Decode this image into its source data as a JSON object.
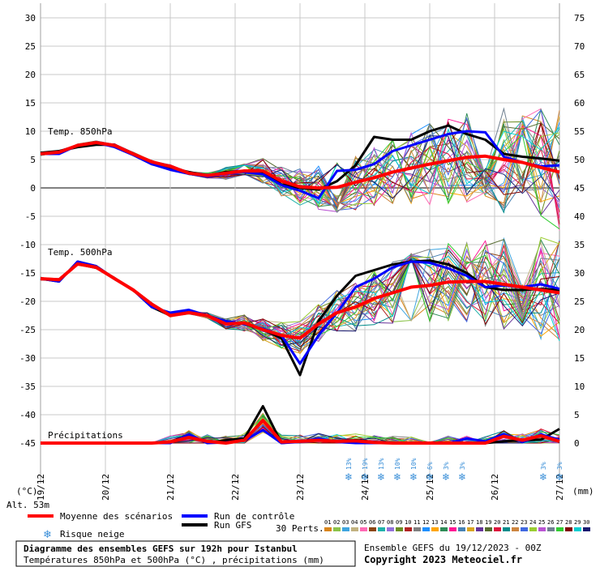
{
  "chart_data": {
    "type": "line",
    "title": "Diagramme des ensembles GEFS sur 192h pour Istanbul",
    "subtitle": "Températures 850hPa et 500hPa (°C) , précipitations (mm)",
    "run_label": "Ensemble GEFS du 19/12/2023 - 00Z",
    "copyright": "Copyright 2023 Meteociel.fr",
    "altitude_label": "Alt. 53m",
    "left_unit": "(°C)",
    "right_unit": "(mm)",
    "y_left": {
      "min": -45,
      "max": 30,
      "ticks": [
        30,
        25,
        20,
        15,
        10,
        5,
        0,
        -5,
        -10,
        -15,
        -20,
        -25,
        -30,
        -35,
        -40,
        -45
      ]
    },
    "y_right": {
      "min": 0,
      "max": 75,
      "ticks": [
        75,
        70,
        65,
        60,
        55,
        50,
        45,
        40,
        35,
        30,
        25,
        20,
        15,
        10,
        5,
        0
      ]
    },
    "x_labels": [
      "19/12",
      "20/12",
      "21/12",
      "22/12",
      "23/12",
      "24/12",
      "25/12",
      "26/12",
      "27/12"
    ],
    "panel_labels": {
      "t850": "Temp. 850hPa",
      "t500": "Temp. 500hPa",
      "precip": "Précipitations"
    },
    "series": [
      {
        "name": "Moyenne des scénarios",
        "color": "#ff0000",
        "t850": [
          6,
          6.3,
          7.5,
          8,
          7.5,
          6,
          4.6,
          3.8,
          2.6,
          2.2,
          2.6,
          3,
          3,
          1.2,
          0.2,
          0,
          0.1,
          1,
          1.8,
          2.8,
          3.5,
          4.2,
          4.8,
          5.4,
          5.6,
          5,
          4.5,
          3.6,
          2.8
        ],
        "t500": [
          -16,
          -16.2,
          -13.4,
          -14,
          -16,
          -18,
          -20.5,
          -22.5,
          -22,
          -22.5,
          -24,
          -23.8,
          -25,
          -26,
          -26.5,
          -24,
          -22,
          -21,
          -19.5,
          -18.5,
          -17.5,
          -17.2,
          -16.6,
          -16.5,
          -16.5,
          -17,
          -17.5,
          -18,
          -18.5
        ],
        "precip": [
          0,
          0,
          0,
          0,
          0,
          0,
          0,
          0.2,
          1,
          0.3,
          0,
          0.5,
          4,
          0.2,
          0.3,
          0.5,
          0.3,
          0.4,
          0.1,
          0,
          0,
          0,
          0,
          0,
          0,
          1.2,
          0.5,
          1.3,
          0.3
        ]
      },
      {
        "name": "Run de contrôle",
        "color": "#0000ff",
        "t850": [
          6,
          6,
          7.5,
          8,
          7.2,
          5.8,
          4.2,
          3.2,
          2.5,
          2,
          2.5,
          2.8,
          2.4,
          0.5,
          -0.5,
          -1.8,
          3,
          3.2,
          4.2,
          6.5,
          7.5,
          8.5,
          9.5,
          10,
          9.8,
          5.5,
          4.5,
          3.8,
          4
        ],
        "t500": [
          -16,
          -16.5,
          -13,
          -13.8,
          -16,
          -18,
          -21,
          -22,
          -21.5,
          -22.5,
          -23.5,
          -24,
          -24.8,
          -26,
          -31,
          -26,
          -22,
          -17.5,
          -16,
          -14,
          -13,
          -13.2,
          -14.2,
          -15.5,
          -17.5,
          -17.2,
          -17.5,
          -17,
          -17.8
        ],
        "precip": [
          0,
          0,
          0,
          0,
          0,
          0,
          0,
          0,
          1.5,
          0,
          0.1,
          0.5,
          2.3,
          0,
          0.2,
          0.8,
          0.2,
          0,
          0,
          0,
          0,
          0,
          0,
          0.8,
          0.3,
          1.6,
          0.2,
          1.5,
          0.6
        ]
      },
      {
        "name": "Run GFS",
        "color": "#000000",
        "t850": [
          6.2,
          6.5,
          7.2,
          7.6,
          7.6,
          6,
          4.2,
          3.5,
          2.8,
          2.2,
          2.8,
          3,
          2.7,
          0.6,
          0,
          -0.3,
          1.2,
          4,
          9,
          8.5,
          8.5,
          10,
          11,
          9.5,
          8.5,
          6,
          5.5,
          5.2,
          4.8
        ],
        "t500": [
          -16,
          -16.5,
          -13,
          -13.8,
          -16,
          -18,
          -21,
          -22.5,
          -21.8,
          -22.5,
          -23.5,
          -24,
          -25,
          -26.5,
          -33,
          -23.5,
          -19,
          -15.5,
          -14.5,
          -13.5,
          -13,
          -12.8,
          -13.5,
          -15,
          -17.5,
          -18,
          -18,
          -17.8,
          -18
        ],
        "precip": [
          0,
          0,
          0,
          0,
          0,
          0,
          0,
          0.2,
          1.5,
          0,
          0.5,
          0.8,
          6.5,
          0,
          0.3,
          0.5,
          0.2,
          0.5,
          0.2,
          0,
          0,
          0,
          0,
          0,
          0,
          0.3,
          0.5,
          0.6,
          2.5
        ]
      }
    ],
    "snow_risk": [
      {
        "date": "23/12",
        "offset_h": 18,
        "label": "13%"
      },
      {
        "date": "24/12",
        "offset_h": 0,
        "label": "19%"
      },
      {
        "date": "24/12",
        "offset_h": 6,
        "label": "13%"
      },
      {
        "date": "24/12",
        "offset_h": 12,
        "label": "10%"
      },
      {
        "date": "24/12",
        "offset_h": 18,
        "label": "10%"
      },
      {
        "date": "25/12",
        "offset_h": 0,
        "label": "6%"
      },
      {
        "date": "25/12",
        "offset_h": 6,
        "label": "3%"
      },
      {
        "date": "25/12",
        "offset_h": 12,
        "label": "3%"
      },
      {
        "date": "26/12",
        "offset_h": 18,
        "label": "3%"
      },
      {
        "date": "27/12",
        "offset_h": 0,
        "label": "3%"
      }
    ],
    "legend": {
      "mean": "Moyenne des scénarios",
      "control": "Run de contrôle",
      "gfs": "Run GFS",
      "snow": "Risque neige",
      "perts_label": "30 Perts.",
      "perts": [
        "01",
        "02",
        "03",
        "04",
        "05",
        "06",
        "07",
        "08",
        "09",
        "10",
        "11",
        "12",
        "13",
        "14",
        "15",
        "16",
        "17",
        "18",
        "19",
        "20",
        "21",
        "22",
        "23",
        "24",
        "25",
        "26",
        "27",
        "28",
        "29",
        "30"
      ],
      "pert_colors": [
        "#d9841a",
        "#8bc34a",
        "#3fa5e0",
        "#c2b280",
        "#ff69b4",
        "#8b4513",
        "#20b2aa",
        "#9370db",
        "#6b8e23",
        "#b22222",
        "#808080",
        "#1e90ff",
        "#ffa500",
        "#2e8b57",
        "#ff1493",
        "#4682b4",
        "#daa520",
        "#663399",
        "#556b2f",
        "#dc143c",
        "#008b8b",
        "#cd853f",
        "#4169e1",
        "#9acd32",
        "#ba55d3",
        "#708090",
        "#32cd32",
        "#800000",
        "#00ced1",
        "#191970"
      ]
    }
  }
}
